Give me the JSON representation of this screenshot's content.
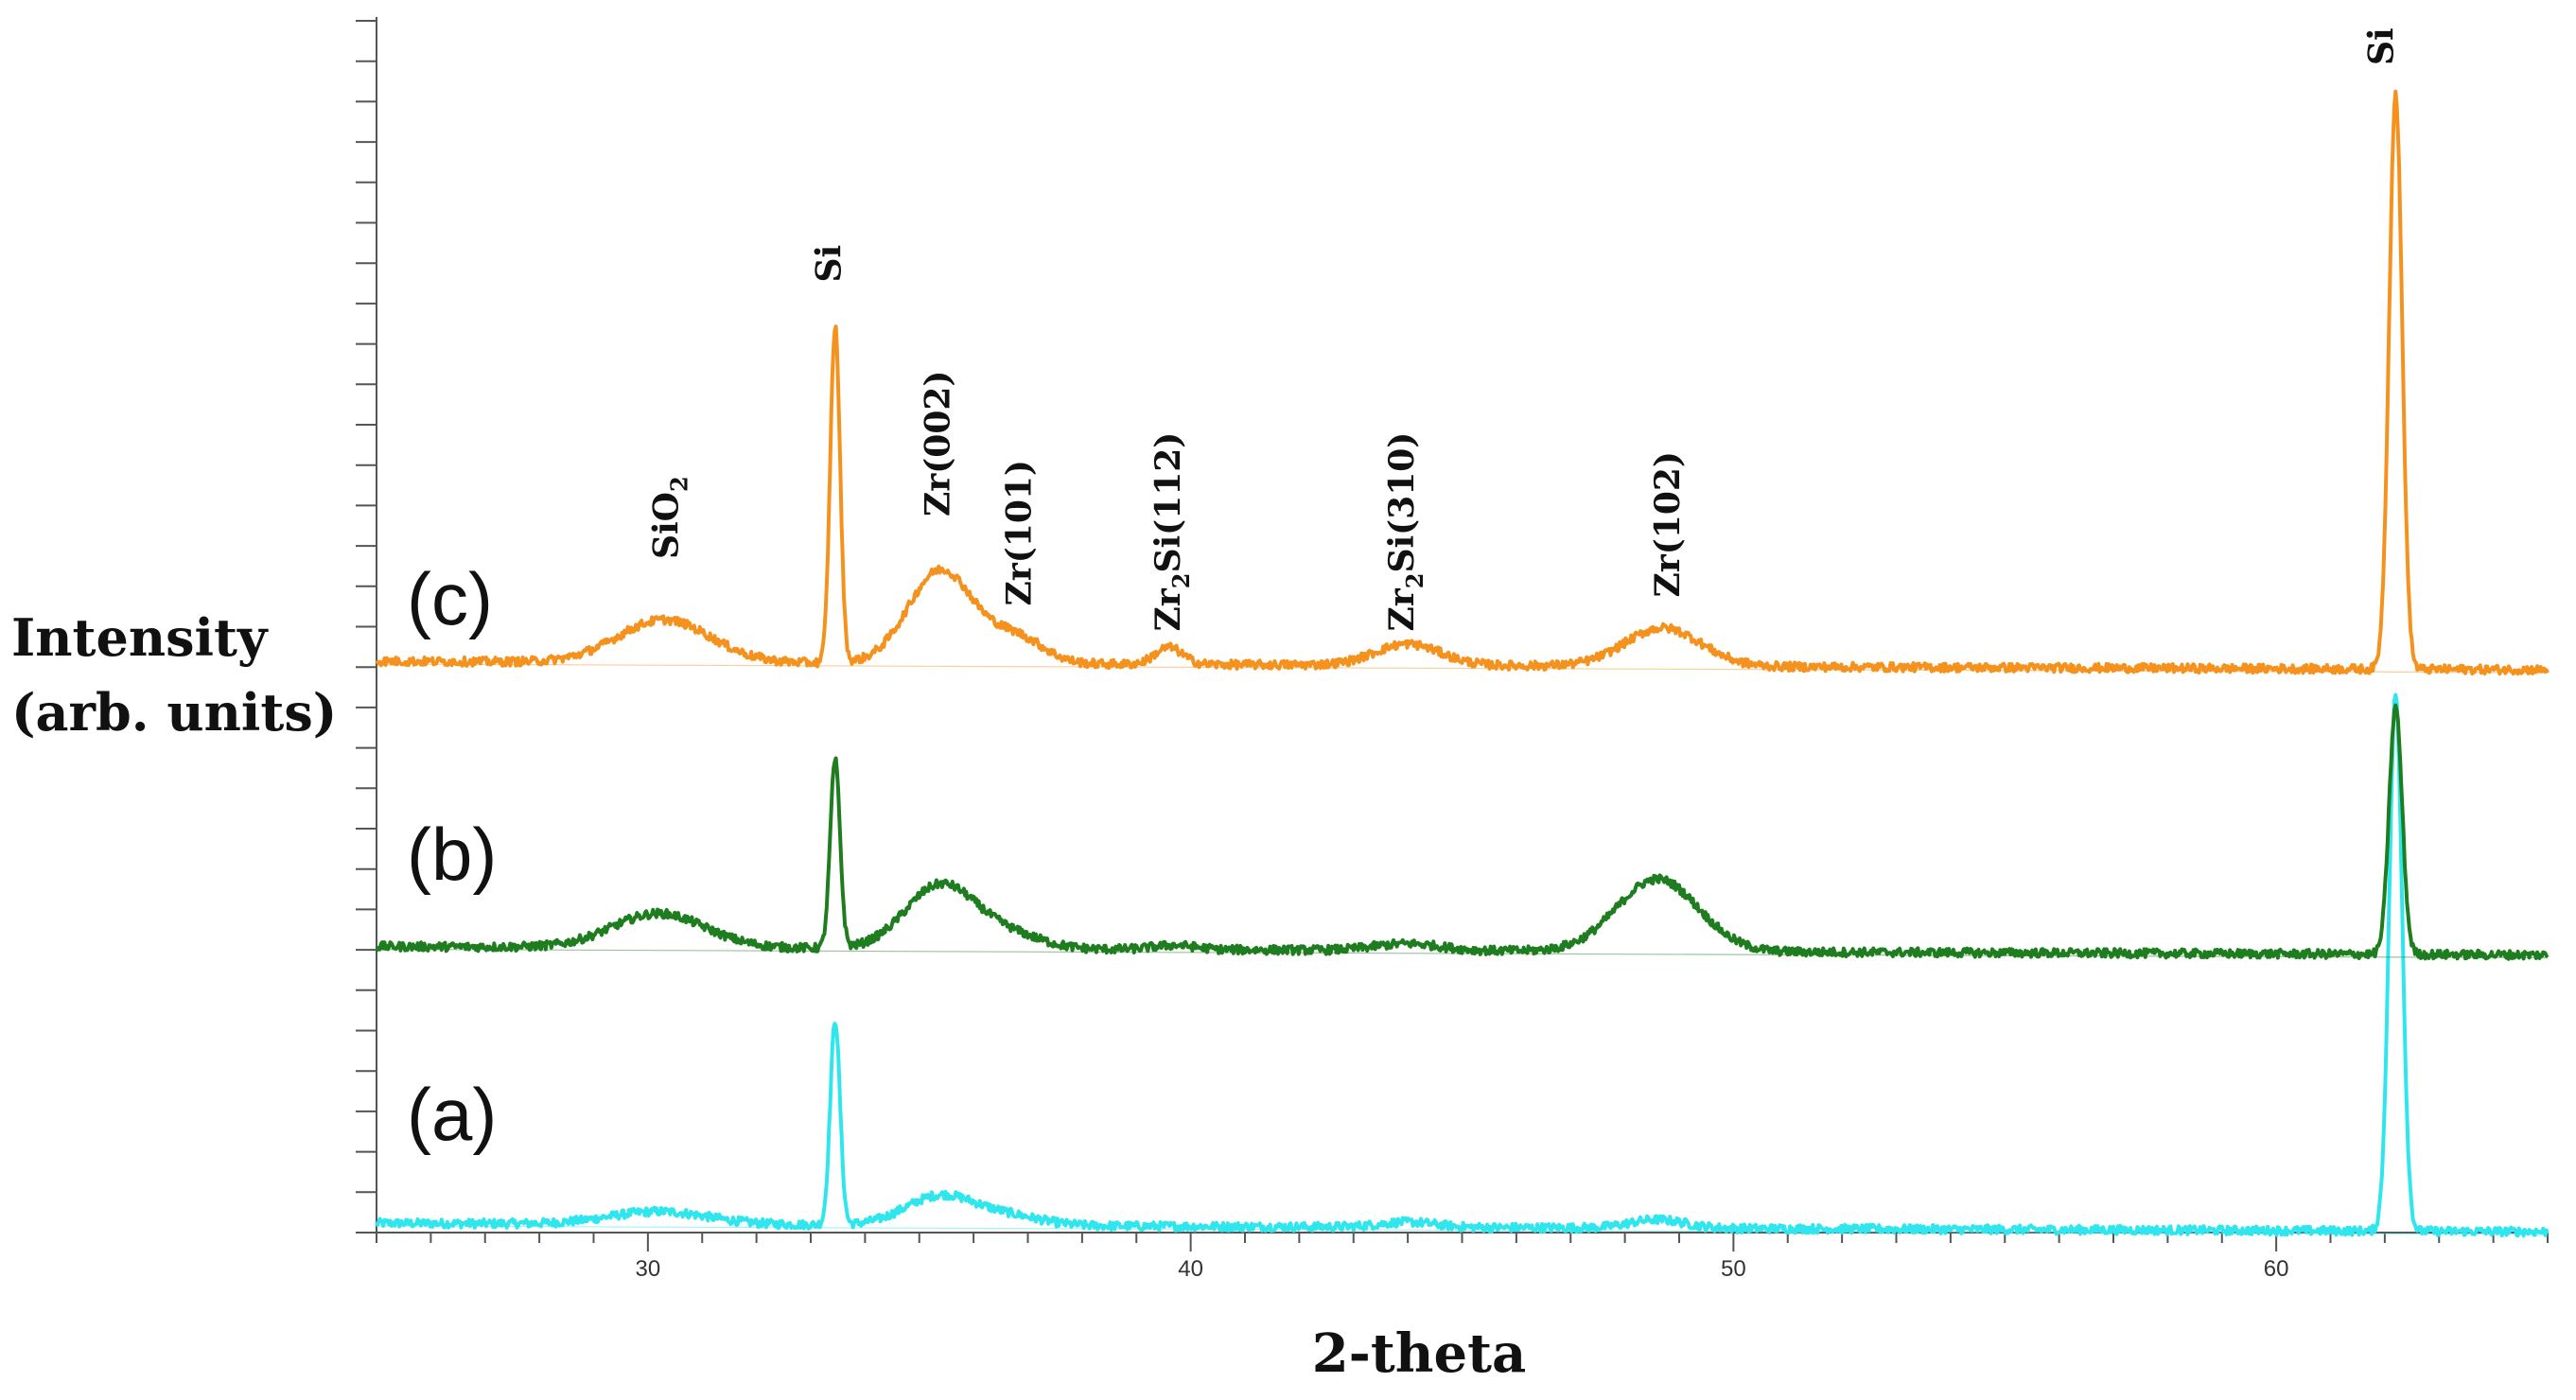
{
  "chart_data": {
    "type": "line",
    "title": "",
    "xlabel": "2-theta",
    "ylabel_lines": [
      "Intensity",
      "(arb. units)"
    ],
    "xlim": [
      25,
      65
    ],
    "x_ticks": [
      30,
      40,
      50,
      60
    ],
    "x_tick_labels": [
      "30",
      "40",
      "50",
      "60"
    ],
    "grid": false,
    "legend": "none",
    "y_tick_count": 31,
    "series": [
      {
        "name": "(a)",
        "label": "(a)",
        "color": "#2fe6ee",
        "baseline": 0.3,
        "peaks": [
          {
            "x": 30.2,
            "height": 0.15,
            "width": 0.9
          },
          {
            "x": 33.45,
            "height": 2.4,
            "width": 0.09
          },
          {
            "x": 35.4,
            "height": 0.35,
            "width": 0.65
          },
          {
            "x": 36.7,
            "height": 0.1,
            "width": 0.6
          },
          {
            "x": 44.0,
            "height": 0.06,
            "width": 0.5
          },
          {
            "x": 48.6,
            "height": 0.1,
            "width": 0.5
          },
          {
            "x": 62.2,
            "height": 6.3,
            "width": 0.12
          }
        ]
      },
      {
        "name": "(b)",
        "label": "(b)",
        "color": "#1e7d1e",
        "baseline": 3.55,
        "peaks": [
          {
            "x": 30.2,
            "height": 0.4,
            "width": 0.85
          },
          {
            "x": 33.45,
            "height": 2.2,
            "width": 0.09
          },
          {
            "x": 35.4,
            "height": 0.75,
            "width": 0.65
          },
          {
            "x": 36.7,
            "height": 0.15,
            "width": 0.6
          },
          {
            "x": 39.7,
            "height": 0.05,
            "width": 0.4
          },
          {
            "x": 44.0,
            "height": 0.08,
            "width": 0.6
          },
          {
            "x": 48.6,
            "height": 0.85,
            "width": 0.75
          },
          {
            "x": 62.2,
            "height": 2.9,
            "width": 0.12
          }
        ]
      },
      {
        "name": "(c)",
        "label": "(c)",
        "color": "#f5921e",
        "baseline": 6.9,
        "peaks": [
          {
            "x": 30.3,
            "height": 0.5,
            "width": 0.85
          },
          {
            "x": 33.45,
            "height": 3.95,
            "width": 0.09
          },
          {
            "x": 35.4,
            "height": 1.1,
            "width": 0.6
          },
          {
            "x": 36.8,
            "height": 0.3,
            "width": 0.5
          },
          {
            "x": 39.6,
            "height": 0.2,
            "width": 0.25
          },
          {
            "x": 44.0,
            "height": 0.25,
            "width": 0.6
          },
          {
            "x": 48.7,
            "height": 0.45,
            "width": 0.7
          },
          {
            "x": 62.2,
            "height": 6.75,
            "width": 0.12
          }
        ]
      }
    ],
    "peak_annotations": [
      {
        "label": "SiO2",
        "x": 30.55,
        "y": 8.1
      },
      {
        "label": "Si",
        "x": 33.55,
        "y": 11.35
      },
      {
        "label": "Zr(002)",
        "x": 35.55,
        "y": 8.6
      },
      {
        "label": "Zr(101)",
        "x": 37.05,
        "y": 7.55
      },
      {
        "label": "Zr2Si(112)",
        "x": 39.8,
        "y": 7.25
      },
      {
        "label": "Zr2Si(310)",
        "x": 44.1,
        "y": 7.25
      },
      {
        "label": "Zr(102)",
        "x": 49.0,
        "y": 7.65
      },
      {
        "label": "Si",
        "x": 62.15,
        "y": 13.9
      }
    ]
  }
}
